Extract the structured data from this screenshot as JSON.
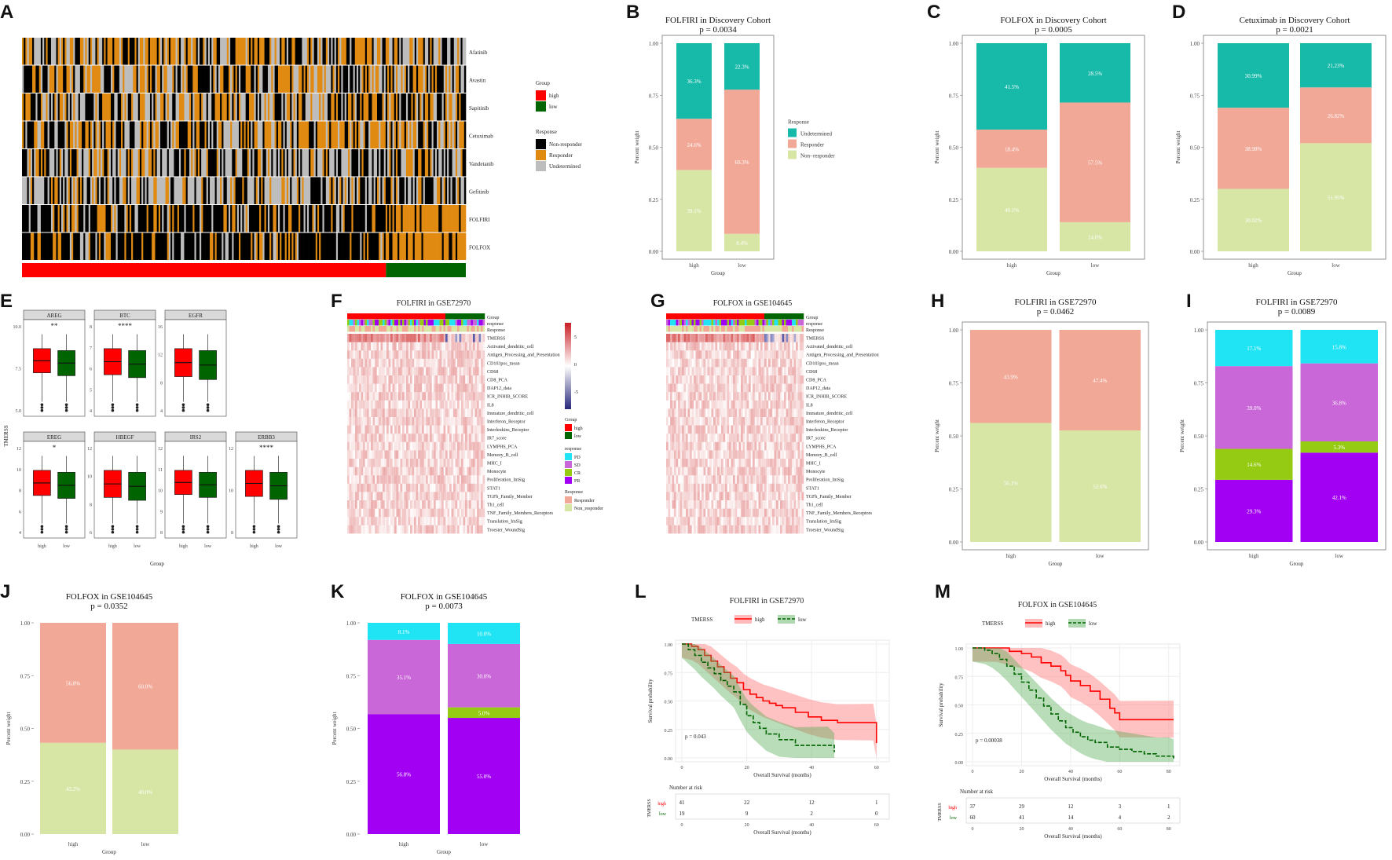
{
  "colors": {
    "high": "#ff0000",
    "low": "#006400",
    "undetermined": "#17b9a8",
    "responder": "#f2a897",
    "nonresponder": "#d7e5a5",
    "pd": "#20e3f4",
    "sd": "#c966d8",
    "cr": "#95cb12",
    "pr": "#a100f2",
    "hm_nonresp": "#000000",
    "hm_resp": "#e08a12",
    "hm_undet": "#bdbdbd"
  },
  "panels": {
    "A": {
      "label": "A",
      "rows": [
        "Afatinib",
        "Avastin",
        "Sapitinib",
        "Cetuximab",
        "Vandetanib",
        "Gefitinib",
        "FOLFIRI",
        "FOLFOX"
      ],
      "legend_group_title": "Group",
      "legend_group": [
        "high",
        "low"
      ],
      "legend_resp_title": "Response",
      "legend_resp": [
        "Non-responder",
        "Responder",
        "Undetermined"
      ]
    },
    "E": {
      "label": "E",
      "ylabel": "TMERSS",
      "xlabel": "Group",
      "groups": [
        "high",
        "low"
      ],
      "facets": [
        {
          "name": "AREG",
          "sig": "**",
          "ticks": [
            "5.0",
            "7.5",
            "10.0"
          ]
        },
        {
          "name": "BTC",
          "sig": "****",
          "ticks": [
            "4",
            "5",
            "6",
            "7",
            "8"
          ]
        },
        {
          "name": "EGFR",
          "sig": "",
          "ticks": [
            "4",
            "8",
            "12",
            "16"
          ]
        },
        {
          "name": "EREG",
          "sig": "*",
          "ticks": [
            "4",
            "6",
            "8",
            "10",
            "12"
          ]
        },
        {
          "name": "HBEGF",
          "sig": "",
          "ticks": [
            "6",
            "8",
            "10",
            "12"
          ]
        },
        {
          "name": "IRS2",
          "sig": "",
          "ticks": [
            "8",
            "9",
            "10",
            "11",
            "12"
          ]
        },
        {
          "name": "ERBB3",
          "sig": "****",
          "ticks": [
            "8",
            "10",
            "12"
          ]
        }
      ]
    },
    "F": {
      "label": "F",
      "title": "FOLFIRI in GSE72970",
      "annot_rows": [
        "Group",
        "response",
        "Response"
      ],
      "rows": [
        "TMERSS",
        "Activated_dendritic_cell",
        "Antigen_Processing_and_Presentation",
        "CD103pos_mean",
        "CD68",
        "CD8_PCA",
        "DAP12_data",
        "ICR_INHIB_SCORE",
        "IL8",
        "Immature_dendritic_cell",
        "Interferon_Receptor",
        "Interleukins_Receptor",
        "IR7_score",
        "LYMPHS_PCA",
        "Memory_B_cell",
        "MHC_I",
        "Monocyte",
        "Proliferation_ImSig",
        "STAT1",
        "TGFb_Family_Member",
        "Th1_cell",
        "TNF_Family_Members_Receptors",
        "Translation_ImSig",
        "Troester_WoundSig"
      ],
      "scale_ticks": [
        "5",
        "0",
        "-5"
      ],
      "legend_group_title": "Group",
      "legend_group": [
        "high",
        "low"
      ],
      "legend_response_title": "response",
      "legend_response": [
        "PD",
        "SD",
        "CR",
        "PR"
      ],
      "legend_Response_title": "Response",
      "legend_Response": [
        "Responder",
        "Non_responder"
      ]
    },
    "G": {
      "label": "G",
      "title": "FOLFOX in GSE104645",
      "annot_rows": [
        "Group",
        "response",
        "Response"
      ],
      "rows": [
        "TMERSS",
        "Activated_dendritic_cell",
        "Antigen_Processing_and_Presentation",
        "CD103pos_mean",
        "CD68",
        "CD8_PCA",
        "DAP12_data",
        "ICR_INHIB_SCORE",
        "IL8",
        "Immature_dendritic_cell",
        "Interferon_Receptor",
        "Interleukins_Receptor",
        "IR7_score",
        "LYMPHS_PCA",
        "Memory_B_cell",
        "MHC_I",
        "Monocyte",
        "Proliferation_ImSig",
        "STAT1",
        "TGFb_Family_Member",
        "Th1_cell",
        "TNF_Family_Members_Receptors",
        "Translation_ImSig",
        "Troester_WoundSig"
      ]
    },
    "L": {
      "label": "L",
      "title": "FOLFIRI in GSE72970",
      "legend_title": "TMERSS",
      "legend": [
        "high",
        "low"
      ],
      "pval": "p = 0.043",
      "ylabel": "Survival probability",
      "xlabel": "Overall Survival (months)",
      "risk_title": "Number at risk",
      "risk_ylabel": "TMERSS"
    },
    "M": {
      "label": "M",
      "title": "FOLFOX in GSE104645",
      "legend_title": "TMERSS",
      "legend": [
        "high",
        "low"
      ],
      "pval": "p = 0.00038",
      "ylabel": "Survival probability",
      "xlabel": "Overall Survival (months)",
      "risk_title": "Number at risk",
      "risk_ylabel": "TMERSS"
    }
  },
  "chart_data": [
    {
      "id": "B",
      "type": "bar",
      "title": "FOLFIRI in Discovery Cohort",
      "subtitle": "p = 0.0034",
      "xlabel": "Group",
      "ylabel": "Percent weight",
      "categories": [
        "high",
        "low"
      ],
      "series": [
        {
          "name": "Non−responder",
          "key": "nonresponder",
          "values": [
            0.391,
            0.084
          ],
          "labels": [
            "39.1%",
            "8.4%"
          ]
        },
        {
          "name": "Responder",
          "key": "responder",
          "values": [
            0.246,
            0.693
          ],
          "labels": [
            "24.6%",
            "69.3%"
          ]
        },
        {
          "name": "Undetermined",
          "key": "undetermined",
          "values": [
            0.363,
            0.223
          ],
          "labels": [
            "36.3%",
            "22.3%"
          ]
        }
      ],
      "legend_title": "Response",
      "legend": [
        {
          "name": "Undetermined",
          "key": "undetermined"
        },
        {
          "name": "Responder",
          "key": "responder"
        },
        {
          "name": "Non−responder",
          "key": "nonresponder"
        }
      ],
      "yticks": [
        "0.00",
        "0.25",
        "0.50",
        "0.75",
        "1.00"
      ]
    },
    {
      "id": "C",
      "type": "bar",
      "title": "FOLFOX in Discovery Cohort",
      "subtitle": "p = 0.0005",
      "xlabel": "Group",
      "ylabel": "Percent weight",
      "categories": [
        "high",
        "low"
      ],
      "series": [
        {
          "name": "Non−responder",
          "key": "nonresponder",
          "values": [
            0.401,
            0.14
          ],
          "labels": [
            "40.1%",
            "14.0%"
          ]
        },
        {
          "name": "Responder",
          "key": "responder",
          "values": [
            0.184,
            0.575
          ],
          "labels": [
            "18.4%",
            "57.5%"
          ]
        },
        {
          "name": "Undetermined",
          "key": "undetermined",
          "values": [
            0.415,
            0.285
          ],
          "labels": [
            "41.5%",
            "28.5%"
          ]
        }
      ],
      "yticks": [
        "0.00",
        "0.25",
        "0.50",
        "0.75",
        "1.00"
      ]
    },
    {
      "id": "D",
      "type": "bar",
      "title": "Cetuximab in Discovery Cohort",
      "subtitle": "p = 0.0021",
      "xlabel": "Group",
      "ylabel": "Percent weight",
      "categories": [
        "high",
        "low"
      ],
      "series": [
        {
          "name": "Non−responder",
          "key": "nonresponder",
          "values": [
            0.3002,
            0.5195
          ],
          "labels": [
            "30.02%",
            "51.95%"
          ]
        },
        {
          "name": "Responder",
          "key": "responder",
          "values": [
            0.3898,
            0.2682
          ],
          "labels": [
            "38.98%",
            "26.82%"
          ]
        },
        {
          "name": "Undetermined",
          "key": "undetermined",
          "values": [
            0.3099,
            0.2123
          ],
          "labels": [
            "30.99%",
            "21.23%"
          ]
        }
      ],
      "yticks": [
        "0.00",
        "0.25",
        "0.50",
        "0.75",
        "1.00"
      ]
    },
    {
      "id": "H",
      "type": "bar",
      "title": "FOLFIRI in GSE72970",
      "subtitle": "p = 0.0462",
      "xlabel": "Group",
      "ylabel": "Percent weight",
      "categories": [
        "high",
        "low"
      ],
      "series": [
        {
          "name": "Non_responder",
          "key": "nonresponder",
          "values": [
            0.561,
            0.526
          ],
          "labels": [
            "56.1%",
            "52.6%"
          ]
        },
        {
          "name": "Responder",
          "key": "responder",
          "values": [
            0.439,
            0.474
          ],
          "labels": [
            "43.9%",
            "47.4%"
          ]
        }
      ],
      "yticks": [
        "0.00",
        "0.25",
        "0.50",
        "0.75",
        "1.00"
      ]
    },
    {
      "id": "I",
      "type": "bar",
      "title": "FOLFIRI in GSE72970",
      "subtitle": "p = 0.0089",
      "xlabel": "Group",
      "ylabel": "Percent weight",
      "categories": [
        "high",
        "low"
      ],
      "series": [
        {
          "name": "PR",
          "key": "pr",
          "values": [
            0.293,
            0.421
          ],
          "labels": [
            "29.3%",
            "42.1%"
          ]
        },
        {
          "name": "CR",
          "key": "cr",
          "values": [
            0.146,
            0.053
          ],
          "labels": [
            "14.6%",
            "5.3%"
          ]
        },
        {
          "name": "SD",
          "key": "sd",
          "values": [
            0.39,
            0.368
          ],
          "labels": [
            "39.0%",
            "36.8%"
          ]
        },
        {
          "name": "PD",
          "key": "pd",
          "values": [
            0.171,
            0.158
          ],
          "labels": [
            "17.1%",
            "15.8%"
          ]
        }
      ],
      "yticks": [
        "0.00",
        "0.25",
        "0.50",
        "0.75",
        "1.00"
      ]
    },
    {
      "id": "J",
      "type": "bar",
      "title": "FOLFOX in GSE104645",
      "subtitle": "p = 0.0352",
      "xlabel": "Group",
      "ylabel": "Percent weight",
      "categories": [
        "high",
        "low"
      ],
      "series": [
        {
          "name": "Non_responder",
          "key": "nonresponder",
          "values": [
            0.432,
            0.4
          ],
          "labels": [
            "43.2%",
            "40.0%"
          ]
        },
        {
          "name": "Responder",
          "key": "responder",
          "values": [
            0.568,
            0.6
          ],
          "labels": [
            "56.8%",
            "60.0%"
          ]
        }
      ],
      "yticks": [
        "0.00",
        "0.25",
        "0.50",
        "0.75",
        "1.00"
      ]
    },
    {
      "id": "K",
      "type": "bar",
      "title": "FOLFOX in GSE104645",
      "subtitle": "p = 0.0073",
      "xlabel": "Group",
      "ylabel": "Percent weight",
      "categories": [
        "high",
        "low"
      ],
      "series": [
        {
          "name": "PR",
          "key": "pr",
          "values": [
            0.568,
            0.55
          ],
          "labels": [
            "56.8%",
            "55.0%"
          ]
        },
        {
          "name": "CR",
          "key": "cr",
          "values": [
            0.0,
            0.05
          ],
          "labels": [
            "",
            "5.0%"
          ]
        },
        {
          "name": "SD",
          "key": "sd",
          "values": [
            0.351,
            0.3
          ],
          "labels": [
            "35.1%",
            "30.0%"
          ]
        },
        {
          "name": "PD",
          "key": "pd",
          "values": [
            0.081,
            0.1
          ],
          "labels": [
            "8.1%",
            "10.0%"
          ]
        }
      ],
      "yticks": [
        "0.00",
        "0.25",
        "0.50",
        "0.75",
        "1.00"
      ]
    },
    {
      "id": "L",
      "type": "line",
      "xlim": [
        0,
        60
      ],
      "ylim": [
        0,
        1
      ],
      "xticks": [
        "0",
        "20",
        "40",
        "60"
      ],
      "yticks": [
        "0.00",
        "0.25",
        "0.50",
        "0.75",
        "1.00"
      ],
      "series": [
        {
          "name": "high",
          "x": [
            0,
            3,
            5,
            7,
            9,
            11,
            13,
            15,
            17,
            19,
            21,
            23,
            25,
            27,
            29,
            31,
            35,
            39,
            43,
            48,
            54,
            59,
            60
          ],
          "y": [
            1,
            0.98,
            0.95,
            0.9,
            0.85,
            0.8,
            0.75,
            0.7,
            0.66,
            0.6,
            0.56,
            0.53,
            0.5,
            0.48,
            0.46,
            0.44,
            0.4,
            0.36,
            0.33,
            0.31,
            0.31,
            0.31,
            0.13
          ]
        },
        {
          "name": "low",
          "x": [
            0,
            2,
            4,
            6,
            8,
            10,
            12,
            14,
            16,
            18,
            20,
            22,
            24,
            26,
            30,
            35,
            40,
            45,
            47
          ],
          "y": [
            1,
            0.95,
            0.9,
            0.84,
            0.79,
            0.74,
            0.68,
            0.63,
            0.58,
            0.47,
            0.37,
            0.31,
            0.26,
            0.21,
            0.16,
            0.11,
            0.11,
            0.11,
            0.05
          ]
        }
      ],
      "risk": {
        "high": [
          "41",
          "22",
          "12",
          "1"
        ],
        "low": [
          "19",
          "9",
          "2",
          "0"
        ]
      }
    },
    {
      "id": "M",
      "type": "line",
      "xlim": [
        0,
        80
      ],
      "ylim": [
        0,
        1
      ],
      "xticks": [
        "0",
        "20",
        "40",
        "60",
        "80"
      ],
      "yticks": [
        "0.00",
        "0.25",
        "0.50",
        "0.75",
        "1.00"
      ],
      "series": [
        {
          "name": "high",
          "x": [
            0,
            10,
            15,
            20,
            24,
            28,
            32,
            36,
            38,
            40,
            44,
            48,
            52,
            56,
            58,
            60,
            82
          ],
          "y": [
            1,
            1,
            0.97,
            0.95,
            0.92,
            0.87,
            0.84,
            0.8,
            0.76,
            0.71,
            0.67,
            0.62,
            0.55,
            0.47,
            0.43,
            0.37,
            0.37
          ]
        },
        {
          "name": "low",
          "x": [
            0,
            5,
            8,
            11,
            14,
            17,
            20,
            23,
            26,
            29,
            32,
            35,
            38,
            41,
            44,
            47,
            50,
            55,
            60,
            65,
            70,
            75,
            80,
            82
          ],
          "y": [
            1,
            0.98,
            0.95,
            0.9,
            0.84,
            0.77,
            0.7,
            0.63,
            0.56,
            0.49,
            0.42,
            0.36,
            0.3,
            0.26,
            0.22,
            0.19,
            0.17,
            0.13,
            0.11,
            0.09,
            0.07,
            0.05,
            0.05,
            0.03
          ]
        }
      ],
      "risk": {
        "high": [
          "37",
          "29",
          "12",
          "3",
          "1"
        ],
        "low": [
          "60",
          "41",
          "14",
          "4",
          "2"
        ]
      }
    }
  ]
}
